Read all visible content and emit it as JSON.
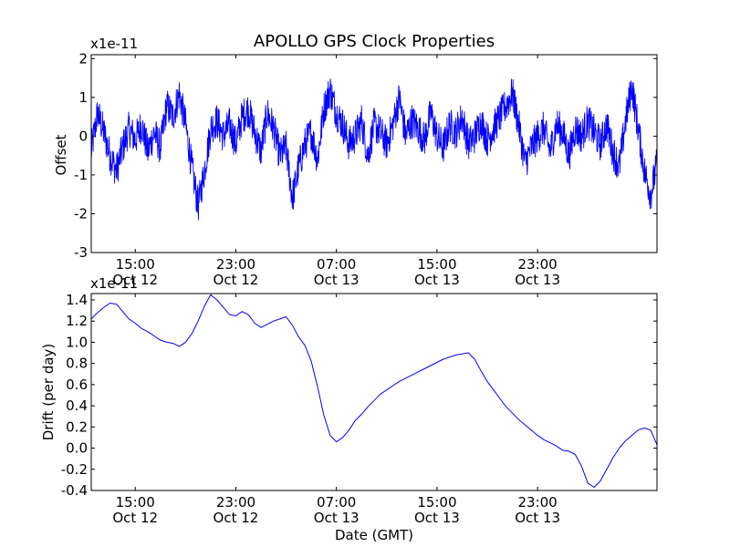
{
  "chart_data": [
    {
      "type": "line",
      "title": "APOLLO GPS Clock Properties",
      "ylabel": "Offset",
      "xlabel": "",
      "y_scale_label": "x1e-11",
      "ylim": [
        -3,
        2.1
      ],
      "yticks": [
        -3,
        -2,
        -1,
        0,
        1,
        2
      ],
      "ytick_labels": [
        "-3",
        "-2",
        "-1",
        "0",
        "1",
        "2"
      ],
      "xlim_hours": [
        11.5,
        56.5
      ],
      "xticks": [
        {
          "hour": 15,
          "time": "15:00",
          "date": "Oct 12"
        },
        {
          "hour": 23,
          "time": "23:00",
          "date": "Oct 12"
        },
        {
          "hour": 31,
          "time": "07:00",
          "date": "Oct 13"
        },
        {
          "hour": 39,
          "time": "15:00",
          "date": "Oct 13"
        },
        {
          "hour": 47,
          "time": "23:00",
          "date": "Oct 13"
        }
      ],
      "series": [
        {
          "name": "Offset",
          "color": "#0000ff",
          "x_hours": [
            11.5,
            12.0,
            12.5,
            13.0,
            13.5,
            14.0,
            14.5,
            15.0,
            15.5,
            16.0,
            16.5,
            17.0,
            17.5,
            18.0,
            18.5,
            19.0,
            19.5,
            20.0,
            20.5,
            21.0,
            21.5,
            22.0,
            22.5,
            23.0,
            23.5,
            24.0,
            24.5,
            25.0,
            25.5,
            26.0,
            26.5,
            27.0,
            27.5,
            28.0,
            28.5,
            29.0,
            29.5,
            30.0,
            30.5,
            31.0,
            31.5,
            32.0,
            32.5,
            33.0,
            33.5,
            34.0,
            34.5,
            35.0,
            35.5,
            36.0,
            36.5,
            37.0,
            37.5,
            38.0,
            38.5,
            39.0,
            39.5,
            40.0,
            40.5,
            41.0,
            41.5,
            42.0,
            42.5,
            43.0,
            43.5,
            44.0,
            44.5,
            45.0,
            45.5,
            46.0,
            46.5,
            47.0,
            47.5,
            48.0,
            48.5,
            49.0,
            49.5,
            50.0,
            50.5,
            51.0,
            51.5,
            52.0,
            52.5,
            53.0,
            53.5,
            54.0,
            54.5,
            55.0,
            55.5,
            56.0,
            56.5
          ],
          "values": [
            -0.4,
            0.6,
            0.1,
            -0.5,
            -0.9,
            -0.3,
            0.2,
            -0.1,
            0.3,
            -0.4,
            0.1,
            -0.3,
            0.8,
            0.5,
            1.1,
            0.3,
            -0.8,
            -1.8,
            -0.9,
            0.2,
            0.4,
            0.0,
            0.3,
            -0.2,
            0.5,
            0.7,
            0.1,
            -0.4,
            0.6,
            0.2,
            -0.5,
            -0.3,
            -1.6,
            -0.8,
            -0.2,
            0.1,
            -0.6,
            0.7,
            1.2,
            0.6,
            0.3,
            -0.2,
            0.0,
            0.4,
            -0.5,
            0.3,
            0.1,
            -0.2,
            0.3,
            1.0,
            0.0,
            0.4,
            0.2,
            -0.1,
            0.6,
            0.0,
            -0.3,
            0.3,
            0.1,
            0.5,
            -0.2,
            0.0,
            0.4,
            -0.1,
            0.2,
            0.5,
            0.8,
            1.1,
            0.3,
            -0.7,
            -0.3,
            0.0,
            0.2,
            -0.4,
            0.3,
            0.1,
            -0.5,
            0.2,
            0.0,
            0.4,
            0.1,
            -0.2,
            0.3,
            -0.4,
            -0.8,
            0.4,
            1.3,
            0.2,
            -0.9,
            -1.5,
            -0.7
          ]
        }
      ]
    },
    {
      "type": "line",
      "title": "",
      "ylabel": "Drift (per day)",
      "xlabel": "Date (GMT)",
      "y_scale_label": "x1e-11",
      "ylim": [
        -0.4,
        1.46
      ],
      "yticks": [
        -0.4,
        -0.2,
        0.0,
        0.2,
        0.4,
        0.6,
        0.8,
        1.0,
        1.2,
        1.4
      ],
      "ytick_labels": [
        "-0.4",
        "-0.2",
        "0.0",
        "0.2",
        "0.4",
        "0.6",
        "0.8",
        "1.0",
        "1.2",
        "1.4"
      ],
      "xlim_hours": [
        11.5,
        56.5
      ],
      "xticks": [
        {
          "hour": 15,
          "time": "15:00",
          "date": "Oct 12"
        },
        {
          "hour": 23,
          "time": "23:00",
          "date": "Oct 12"
        },
        {
          "hour": 31,
          "time": "07:00",
          "date": "Oct 13"
        },
        {
          "hour": 39,
          "time": "15:00",
          "date": "Oct 13"
        },
        {
          "hour": 47,
          "time": "23:00",
          "date": "Oct 13"
        }
      ],
      "series": [
        {
          "name": "Drift",
          "color": "#0000ff",
          "x_hours": [
            11.5,
            12.0,
            12.5,
            13.0,
            13.5,
            14.0,
            14.5,
            15.0,
            15.5,
            16.0,
            16.5,
            17.0,
            17.5,
            18.0,
            18.5,
            19.0,
            19.5,
            20.0,
            20.5,
            21.0,
            21.5,
            22.0,
            22.5,
            23.0,
            23.5,
            24.0,
            24.5,
            25.0,
            25.5,
            26.0,
            26.5,
            27.0,
            27.5,
            28.0,
            28.5,
            29.0,
            29.5,
            30.0,
            30.5,
            31.0,
            31.5,
            32.0,
            32.5,
            33.0,
            33.5,
            34.0,
            34.5,
            35.0,
            35.5,
            36.0,
            36.5,
            37.0,
            37.5,
            38.0,
            38.5,
            39.0,
            39.5,
            40.0,
            40.5,
            41.0,
            41.5,
            42.0,
            42.5,
            43.0,
            43.5,
            44.0,
            44.5,
            45.0,
            45.5,
            46.0,
            46.5,
            47.0,
            47.5,
            48.0,
            48.5,
            49.0,
            49.5,
            50.0,
            50.5,
            51.0,
            51.5,
            52.0,
            52.5,
            53.0,
            53.5,
            54.0,
            54.5,
            55.0,
            55.5,
            56.0,
            56.5
          ],
          "values": [
            1.22,
            1.28,
            1.33,
            1.37,
            1.36,
            1.29,
            1.22,
            1.18,
            1.13,
            1.1,
            1.06,
            1.02,
            1.0,
            0.99,
            0.96,
            1.0,
            1.08,
            1.2,
            1.34,
            1.45,
            1.4,
            1.33,
            1.26,
            1.25,
            1.29,
            1.26,
            1.18,
            1.14,
            1.17,
            1.2,
            1.22,
            1.24,
            1.16,
            1.05,
            0.97,
            0.82,
            0.58,
            0.31,
            0.12,
            0.06,
            0.1,
            0.17,
            0.26,
            0.32,
            0.39,
            0.45,
            0.51,
            0.55,
            0.59,
            0.63,
            0.66,
            0.69,
            0.72,
            0.75,
            0.78,
            0.81,
            0.84,
            0.86,
            0.88,
            0.89,
            0.9,
            0.84,
            0.73,
            0.63,
            0.55,
            0.47,
            0.39,
            0.33,
            0.27,
            0.22,
            0.17,
            0.12,
            0.08,
            0.05,
            0.02,
            -0.02,
            -0.03,
            -0.06,
            -0.17,
            -0.33,
            -0.37,
            -0.31,
            -0.2,
            -0.09,
            0.0,
            0.07,
            0.12,
            0.17,
            0.19,
            0.17,
            0.03
          ]
        }
      ]
    }
  ],
  "figure": {
    "title": "APOLLO GPS Clock Properties",
    "background": "#ffffff"
  }
}
